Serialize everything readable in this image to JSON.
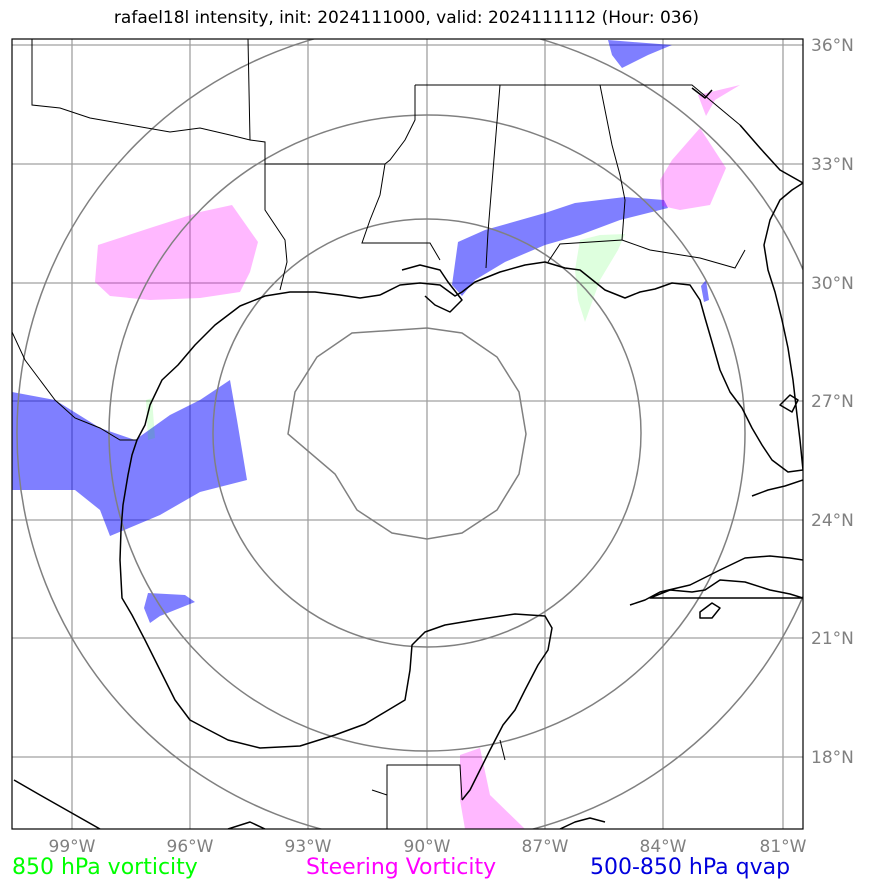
{
  "title": "rafael18l intensity, init: 2024111000, valid: 2024111112 (Hour: 036)",
  "lat_labels": [
    "36°N",
    "33°N",
    "30°N",
    "27°N",
    "24°N",
    "21°N",
    "18°N"
  ],
  "lon_labels": [
    "99°W",
    "96°W",
    "93°W",
    "90°W",
    "87°W",
    "84°W",
    "81°W"
  ],
  "legend": {
    "vorticity_850": "850 hPa vorticity",
    "steering": "Steering Vorticity",
    "qvap": "500-850 hPa qvap"
  },
  "colors": {
    "vorticity_850": "#00ff00",
    "steering": "#ff00ff",
    "qvap": "#0000ff",
    "grid": "#a0a0a0",
    "range_rings": "#808080",
    "coast": "#000000"
  },
  "map": {
    "projection": "PlateCarree",
    "extent_lon": [
      -100.5,
      -80.5
    ],
    "extent_lat": [
      16.2,
      36.2
    ],
    "storm_center": {
      "lon": -90,
      "lat": 26
    }
  }
}
